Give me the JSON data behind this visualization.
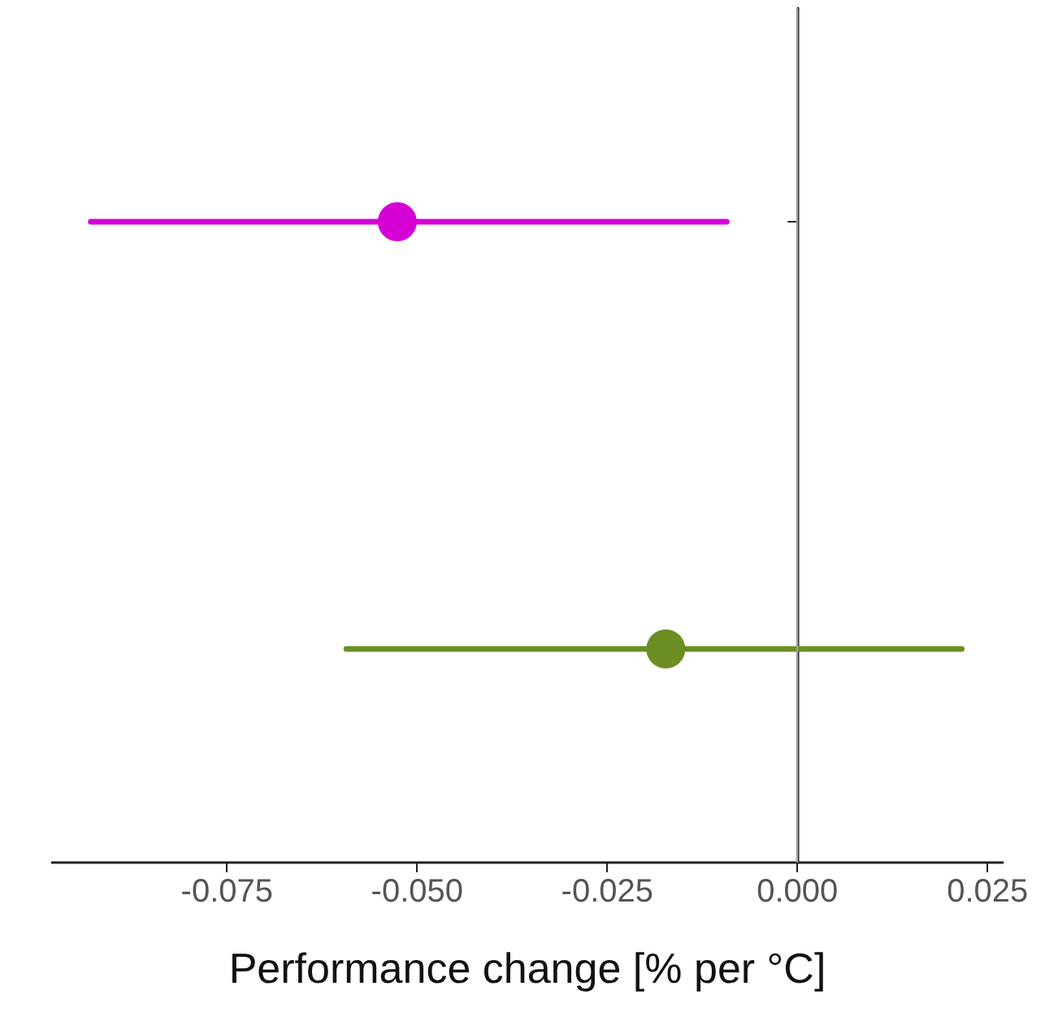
{
  "chart_data": {
    "type": "scatter",
    "orientation": "horizontal",
    "xlabel": "Performance change [% per °C]",
    "categories": [
      null,
      null
    ],
    "values": [
      -0.0526,
      -0.0173
    ],
    "colors": [
      "#d400d4",
      "#6b8e23"
    ],
    "errors": [
      [
        -0.0929,
        -0.0093
      ],
      [
        -0.0593,
        0.0216
      ]
    ],
    "xlim": [
      -0.098,
      0.027
    ],
    "xticks": [
      {
        "value": -0.075,
        "label": "-0.075"
      },
      {
        "value": -0.05,
        "label": "-0.050"
      },
      {
        "value": -0.025,
        "label": "-0.025"
      },
      {
        "value": 0,
        "label": "0.000"
      },
      {
        "value": 0.025,
        "label": "0.025"
      }
    ],
    "ref_lines": [
      {
        "axis": "x",
        "value": 0,
        "color": "#a0a0a0"
      }
    ],
    "tick_labels": "x",
    "marker": "circle",
    "grid": false
  }
}
